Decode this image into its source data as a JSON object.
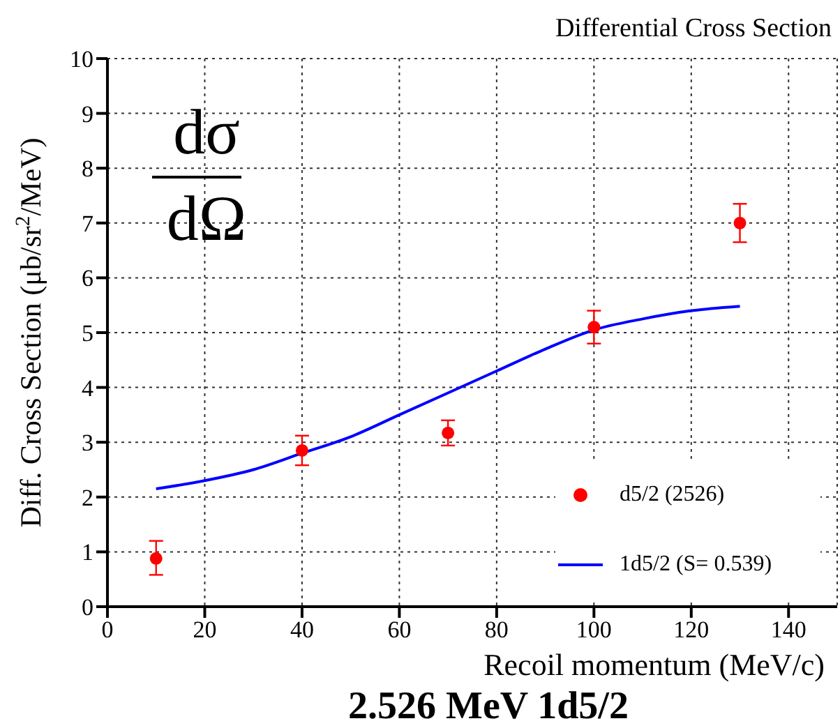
{
  "chart_data": {
    "type": "scatter",
    "title": "Differential Cross Section",
    "subtitle": "2.526 MeV 1d5/2",
    "xlabel": "Recoil momentum (MeV/c)",
    "ylabel": "Diff. Cross Section (μb/sr$^{2}$/MeV)",
    "annotations": [
      "dσ",
      "dΩ"
    ],
    "series": [
      {
        "name": "d5/2 (2526)",
        "color": "#ff0000",
        "marker": "circle",
        "x": [
          10,
          40,
          70,
          100,
          130
        ],
        "values": [
          0.88,
          2.85,
          3.17,
          5.1,
          7.0
        ],
        "errors": [
          [
            0.58,
            1.2
          ],
          [
            2.58,
            3.12
          ],
          [
            2.94,
            3.4
          ],
          [
            4.8,
            5.4
          ],
          [
            6.65,
            7.35
          ]
        ]
      },
      {
        "name": "1d5/2 (S= 0.539)",
        "type": "line",
        "color": "#0000ff",
        "marker": "none",
        "line_style": "solid",
        "x": [
          10,
          20,
          30,
          40,
          50,
          60,
          70,
          80,
          90,
          100,
          110,
          120,
          130
        ],
        "values": [
          2.15,
          2.3,
          2.5,
          2.8,
          3.1,
          3.5,
          3.9,
          4.3,
          4.7,
          5.05,
          5.25,
          5.4,
          5.48
        ]
      }
    ],
    "xlim": [
      0,
      150
    ],
    "xticks": [
      0,
      20,
      40,
      60,
      80,
      100,
      120,
      140
    ],
    "ylim": [
      0,
      10
    ],
    "yticks": [
      0,
      1,
      2,
      3,
      4,
      5,
      6,
      7,
      8,
      9,
      10
    ],
    "grid": true,
    "legend": "bottom right"
  }
}
